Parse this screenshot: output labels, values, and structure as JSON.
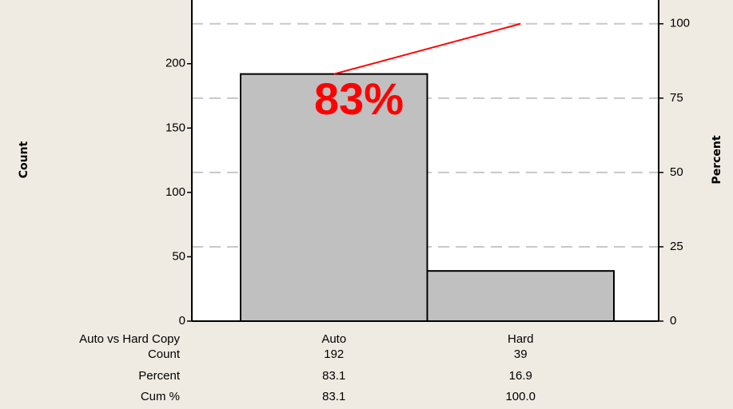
{
  "chart_data": {
    "type": "pareto",
    "categories": [
      "Auto",
      "Hard"
    ],
    "xlabel": "Auto vs Hard Copy",
    "ylabel": "Count",
    "y2label": "Percent",
    "annotation": "83%",
    "series": [
      {
        "name": "Count",
        "values": [
          192,
          39
        ],
        "color": "#c0c0c0"
      },
      {
        "name": "Percent",
        "values": [
          83.1,
          16.9
        ]
      },
      {
        "name": "Cum %",
        "values": [
          83.1,
          100
        ],
        "value_labels": [
          "83.1",
          "100.0"
        ],
        "color": "#ff0000",
        "axis": "y2"
      }
    ],
    "ylim": [
      0,
      249.5
    ],
    "yticks": [
      0,
      50,
      100,
      150,
      200
    ],
    "y2lim": [
      0,
      108
    ],
    "y2ticks": [
      0,
      25,
      50,
      75,
      100
    ],
    "grid": true
  }
}
